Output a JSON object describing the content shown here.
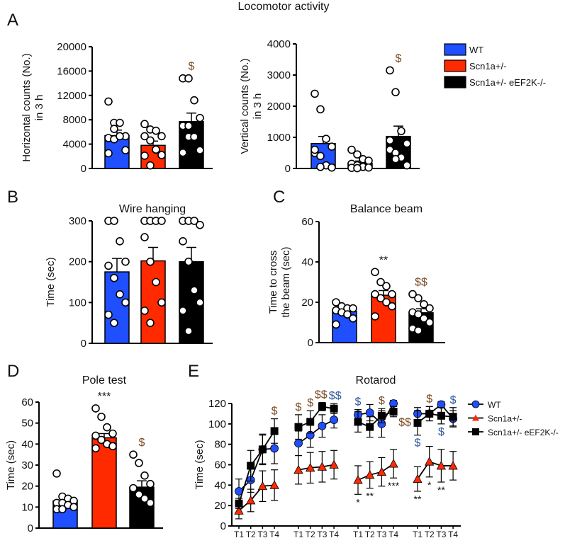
{
  "colors": {
    "WT": "#1f4fff",
    "Scn1a": "#ff2a00",
    "KO": "#000000",
    "dollar_brown": "#7b4a22",
    "dollar_blue": "#2d5aa0",
    "star": "#111111"
  },
  "legend": [
    "WT",
    "Scn1a+/-",
    "Scn1a+/- eEF2K-/-"
  ],
  "chart_data": [
    {
      "id": "A1",
      "type": "bar",
      "panel_letter": "A",
      "title": "Locomotor activity",
      "ylabel": [
        "Horizontal counts (No.)",
        "in 3 h"
      ],
      "ylim": [
        0,
        20000
      ],
      "yticks": [
        "0",
        "4000",
        "8000",
        "12000",
        "16000",
        "20000"
      ],
      "categories": [
        "WT",
        "Scn1a+/-",
        "Scn1a+/- eEF2K-/-"
      ],
      "values": [
        5400,
        3800,
        7700
      ],
      "sem": [
        900,
        700,
        1400
      ],
      "points": [
        [
          11000,
          7500,
          7500,
          5300,
          5000,
          4800,
          5300,
          3000,
          2500,
          6500
        ],
        [
          7300,
          6400,
          6200,
          5300,
          5300,
          4600,
          3100,
          2200,
          2100,
          500
        ],
        [
          14800,
          14800,
          11200,
          8300,
          7000,
          5200,
          5200,
          3000,
          2600,
          7000
        ]
      ],
      "annotations": [
        {
          "bar": 2,
          "text": "$",
          "color": "dollar_brown"
        }
      ]
    },
    {
      "id": "A2",
      "type": "bar",
      "panel_letter": "",
      "title": "",
      "ylabel": [
        "Vertical counts (No.)",
        "in 3 h"
      ],
      "ylim": [
        0,
        4000
      ],
      "yticks": [
        "0",
        "1000",
        "2000",
        "3000",
        "4000"
      ],
      "categories": [
        "WT",
        "Scn1a+/-",
        "Scn1a+/- eEF2K-/-"
      ],
      "values": [
        800,
        170,
        1030
      ],
      "sem": [
        230,
        70,
        330
      ],
      "points": [
        [
          2400,
          1900,
          950,
          700,
          500,
          400,
          100,
          30,
          600,
          50
        ],
        [
          600,
          450,
          300,
          250,
          150,
          100,
          50,
          30,
          20,
          10
        ],
        [
          3150,
          2450,
          1200,
          800,
          600,
          500,
          350,
          100,
          900,
          300
        ]
      ],
      "annotations": [
        {
          "bar": 2,
          "text": "$",
          "color": "dollar_brown"
        }
      ]
    },
    {
      "id": "B",
      "type": "bar",
      "panel_letter": "B",
      "title": "Wire hanging",
      "ylabel": [
        "Time (sec)"
      ],
      "ylim": [
        0,
        300
      ],
      "yticks": [
        "0",
        "100",
        "200",
        "300"
      ],
      "categories": [
        "WT",
        "Scn1a+/-",
        "Scn1a+/- eEF2K-/-"
      ],
      "values": [
        175,
        202,
        200
      ],
      "sem": [
        33,
        33,
        35
      ],
      "points": [
        [
          300,
          300,
          250,
          200,
          190,
          160,
          120,
          100,
          70,
          50
        ],
        [
          300,
          300,
          300,
          300,
          260,
          200,
          150,
          100,
          80,
          50
        ],
        [
          300,
          300,
          300,
          290,
          250,
          200,
          130,
          100,
          80,
          30
        ]
      ],
      "annotations": []
    },
    {
      "id": "C",
      "type": "bar",
      "panel_letter": "C",
      "title": "Balance beam",
      "ylabel": [
        "Time to cross",
        "the beam (sec)"
      ],
      "ylim": [
        0,
        60
      ],
      "yticks": [
        "0",
        "20",
        "40",
        "60"
      ],
      "categories": [
        "WT",
        "Scn1a+/-",
        "Scn1a+/- eEF2K-/-"
      ],
      "values": [
        15.5,
        23.5,
        14.8
      ],
      "sem": [
        1.2,
        2.3,
        2.0
      ],
      "points": [
        [
          20,
          18,
          17,
          17,
          16,
          15,
          14,
          12,
          9
        ],
        [
          35,
          30,
          28,
          24,
          24,
          22,
          20,
          18,
          13
        ],
        [
          24,
          22,
          19,
          17,
          15,
          14,
          12,
          10,
          7,
          6
        ]
      ],
      "annotations": [
        {
          "bar": 1,
          "text": "**",
          "color": "star"
        },
        {
          "bar": 2,
          "text": "$$",
          "color": "dollar_brown"
        }
      ]
    },
    {
      "id": "D",
      "type": "bar",
      "panel_letter": "D",
      "title": "Pole test",
      "ylabel": [
        "Time (sec)"
      ],
      "ylim": [
        0,
        60
      ],
      "yticks": [
        "0",
        "10",
        "20",
        "30",
        "40",
        "50",
        "60"
      ],
      "categories": [
        "WT",
        "Scn1a+/-",
        "Scn1a+/- eEF2K-/-"
      ],
      "values": [
        13,
        43,
        19.5
      ],
      "sem": [
        1.5,
        2,
        3
      ],
      "points": [
        [
          26,
          15,
          14,
          13,
          12,
          12,
          11,
          10,
          9,
          9
        ],
        [
          57,
          53,
          48,
          45,
          44,
          42,
          40,
          39,
          38
        ],
        [
          35,
          31,
          25,
          21,
          19,
          16,
          14,
          12
        ]
      ],
      "annotations": [
        {
          "bar": 1,
          "text": "***",
          "color": "star"
        },
        {
          "bar": 2,
          "text": "$",
          "color": "dollar_brown"
        }
      ]
    },
    {
      "id": "E",
      "type": "line",
      "panel_letter": "E",
      "title": "Rotarod",
      "ylabel": "Time (sec)",
      "ylim": [
        0,
        120
      ],
      "yticks": [
        "0",
        "20",
        "40",
        "60",
        "80",
        "100",
        "120"
      ],
      "xticks": [
        "T1",
        "T2",
        "T3",
        "T4"
      ],
      "groups": 4,
      "series": [
        {
          "name": "WT",
          "color": "WT",
          "marker": "circle",
          "values": [
            [
              34,
              45,
              75,
              76
            ],
            [
              81,
              89,
              98,
              104
            ],
            [
              109,
              111,
              100,
              120
            ],
            [
              110,
              110,
              119,
              105
            ]
          ],
          "sem": [
            [
              12,
              12,
              14,
              15
            ],
            [
              12,
              12,
              11,
              8
            ],
            [
              5,
              8,
              13,
              3
            ],
            [
              6,
              7,
              3,
              8
            ]
          ]
        },
        {
          "name": "Scn1a+/-",
          "color": "Scn1a",
          "marker": "triangle",
          "values": [
            [
              15,
              25,
              39,
              40
            ],
            [
              55,
              57,
              58,
              60
            ],
            [
              45,
              50,
              53,
              61
            ],
            [
              46,
              63,
              59,
              59
            ]
          ],
          "sem": [
            [
              8,
              11,
              15,
              15
            ],
            [
              14,
              15,
              15,
              14
            ],
            [
              14,
              13,
              14,
              14
            ],
            [
              12,
              15,
              16,
              14
            ]
          ]
        },
        {
          "name": "Scn1a+/- eEF2K-/-",
          "color": "KO",
          "marker": "square",
          "values": [
            [
              22,
              59,
              75,
              93
            ],
            [
              97,
              102,
              117,
              115
            ],
            [
              102,
              97,
              108,
              112
            ],
            [
              101,
              110,
              108,
              107
            ]
          ],
          "sem": [
            [
              5,
              15,
              15,
              12
            ],
            [
              12,
              11,
              4,
              5
            ],
            [
              10,
              10,
              7,
              5
            ],
            [
              12,
              7,
              8,
              9
            ]
          ]
        }
      ],
      "annotations": [
        {
          "group": 0,
          "t": 3,
          "series": 2,
          "side": "above",
          "text": "$",
          "color": "dollar_brown"
        },
        {
          "group": 1,
          "t": 0,
          "series": 2,
          "side": "above",
          "text": "$",
          "color": "dollar_brown"
        },
        {
          "group": 1,
          "t": 1,
          "series": 2,
          "side": "above",
          "text": "$",
          "color": "dollar_brown"
        },
        {
          "group": 1,
          "t": 2,
          "series": 2,
          "side": "above",
          "text": "$$",
          "color": "dollar_brown"
        },
        {
          "group": 1,
          "t": 3,
          "series": 2,
          "side": "above",
          "text": "$$",
          "color": "dollar_blue"
        },
        {
          "group": 2,
          "t": 0,
          "series": 0,
          "side": "above",
          "text": "$",
          "color": "dollar_blue"
        },
        {
          "group": 2,
          "t": 2,
          "series": 2,
          "side": "above",
          "text": "$",
          "color": "dollar_brown"
        },
        {
          "group": 2,
          "t": 3,
          "series": 2,
          "side": "below",
          "text": "$$",
          "color": "dollar_brown"
        },
        {
          "group": 2,
          "t": 0,
          "series": 1,
          "side": "below",
          "text": "*",
          "color": "star"
        },
        {
          "group": 2,
          "t": 1,
          "series": 1,
          "side": "below",
          "text": "**",
          "color": "star"
        },
        {
          "group": 2,
          "t": 3,
          "series": 1,
          "side": "below",
          "text": "***",
          "color": "star"
        },
        {
          "group": 3,
          "t": 0,
          "series": 2,
          "side": "below",
          "text": "$",
          "color": "dollar_blue"
        },
        {
          "group": 3,
          "t": 1,
          "series": 2,
          "side": "above",
          "text": "$",
          "color": "dollar_brown"
        },
        {
          "group": 3,
          "t": 2,
          "series": 2,
          "side": "below",
          "text": "$",
          "color": "dollar_blue"
        },
        {
          "group": 3,
          "t": 3,
          "series": 2,
          "side": "above",
          "text": "$",
          "color": "dollar_blue"
        },
        {
          "group": 3,
          "t": 0,
          "series": 1,
          "side": "below",
          "text": "**",
          "color": "star"
        },
        {
          "group": 3,
          "t": 1,
          "series": 1,
          "side": "below",
          "text": "*",
          "color": "star"
        },
        {
          "group": 3,
          "t": 2,
          "series": 1,
          "side": "below",
          "text": "**",
          "color": "star"
        }
      ]
    }
  ]
}
